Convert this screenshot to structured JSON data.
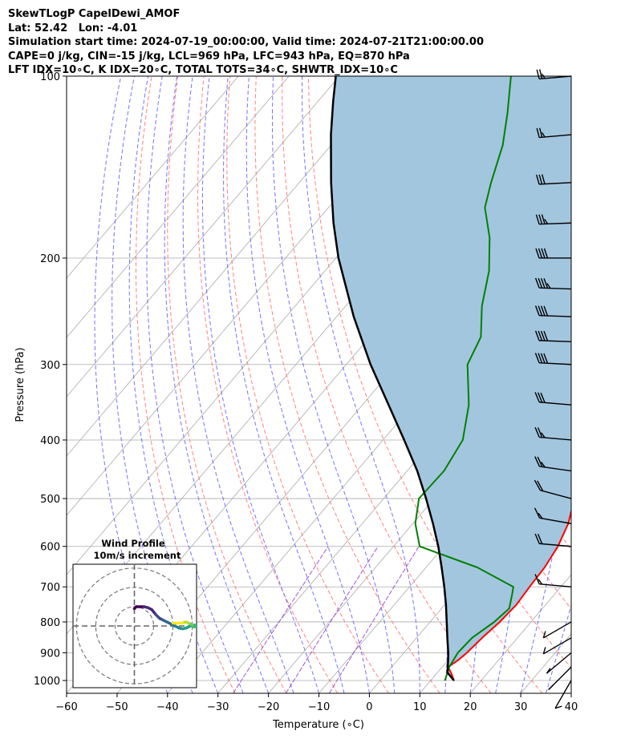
{
  "header": {
    "title": "SkewTLogP CapelDewi_AMOF",
    "location": "Lat: 52.42   Lon: -4.01",
    "times": "Simulation start time: 2024-07-19_00:00:00, Valid time: 2024-07-21T21:00:00.00",
    "indices_1": "CAPE=0 j/kg, CIN=-15 j/kg, LCL=969 hPa, LFC=943 hPa, EQ=870 hPa",
    "indices_2": "LFT IDX=10∘C, K IDX=20∘C, TOTAL TOTS=34∘C, SHWTR_IDX=10∘C"
  },
  "chart_data": {
    "type": "line",
    "xlabel": "Temperature (∘C)",
    "ylabel": "Pressure (hPa)",
    "xlim": [
      -60,
      40
    ],
    "ylim": [
      1050,
      100
    ],
    "y_scale": "log",
    "skew": true,
    "x_ticks": [
      "−60",
      "−50",
      "−40",
      "−30",
      "−20",
      "−10",
      "0",
      "10",
      "20",
      "30",
      "40"
    ],
    "y_ticks": [
      "100",
      "200",
      "300",
      "400",
      "500",
      "600",
      "700",
      "800",
      "900",
      "1000"
    ],
    "y_tick_values": [
      100,
      200,
      300,
      400,
      500,
      600,
      700,
      800,
      900,
      1000
    ],
    "grid": true,
    "colors": {
      "temperature": "#ff0000",
      "dewpoint": "#008000",
      "parcel": "#000000",
      "cape_fill": "#a3c6df",
      "dry_adiabat": "#ff6b6b",
      "moist_adiabat": "#5a5aff",
      "mixing_ratio": "#9944cc",
      "isotherm": "#aaaaaa",
      "isobar": "#aaaaaa"
    },
    "series": [
      {
        "key": "temperature",
        "points": [
          [
            1000,
            14.6
          ],
          [
            975,
            13.0
          ],
          [
            950,
            11.2
          ],
          [
            925,
            12.0
          ],
          [
            900,
            12.5
          ],
          [
            850,
            13.0
          ],
          [
            800,
            13.8
          ],
          [
            750,
            14.2
          ],
          [
            700,
            13.8
          ],
          [
            650,
            13.5
          ],
          [
            600,
            12.6
          ],
          [
            550,
            10.8
          ],
          [
            500,
            7.8
          ],
          [
            450,
            3.9
          ],
          [
            400,
            -0.5
          ],
          [
            350,
            -5.6
          ],
          [
            300,
            -11.2
          ],
          [
            270,
            -13.2
          ],
          [
            250,
            -12.8
          ],
          [
            225,
            -11.0
          ],
          [
            200,
            -9.5
          ],
          [
            175,
            -8.6
          ],
          [
            150,
            -7.5
          ],
          [
            125,
            -6.4
          ],
          [
            110,
            -5.6
          ],
          [
            100,
            -5.0
          ]
        ]
      },
      {
        "key": "dewpoint",
        "points": [
          [
            1000,
            12.8
          ],
          [
            950,
            11.4
          ],
          [
            900,
            10.7
          ],
          [
            850,
            11.0
          ],
          [
            800,
            12.7
          ],
          [
            760,
            13.4
          ],
          [
            720,
            11.6
          ],
          [
            700,
            10.6
          ],
          [
            650,
            0.2
          ],
          [
            600,
            -14.8
          ],
          [
            550,
            -19.5
          ],
          [
            500,
            -23.0
          ],
          [
            450,
            -22.7
          ],
          [
            400,
            -24.2
          ],
          [
            350,
            -28.9
          ],
          [
            300,
            -36.0
          ],
          [
            270,
            -38.0
          ],
          [
            240,
            -43.0
          ],
          [
            210,
            -47.5
          ],
          [
            185,
            -53.0
          ],
          [
            165,
            -59.0
          ],
          [
            150,
            -62.0
          ],
          [
            130,
            -66.0
          ],
          [
            115,
            -70.5
          ],
          [
            100,
            -76.0
          ]
        ]
      },
      {
        "key": "parcel",
        "points": [
          [
            1000,
            14.6
          ],
          [
            975,
            12.4
          ],
          [
            969,
            11.9
          ],
          [
            950,
            11.1
          ],
          [
            925,
            10.0
          ],
          [
            900,
            8.8
          ],
          [
            850,
            6.1
          ],
          [
            800,
            3.3
          ],
          [
            750,
            0.3
          ],
          [
            700,
            -3.1
          ],
          [
            650,
            -6.9
          ],
          [
            600,
            -11.1
          ],
          [
            550,
            -16.0
          ],
          [
            500,
            -21.6
          ],
          [
            450,
            -28.0
          ],
          [
            400,
            -35.8
          ],
          [
            350,
            -44.8
          ],
          [
            300,
            -55.2
          ],
          [
            250,
            -66.6
          ],
          [
            200,
            -79.5
          ],
          [
            175,
            -86.4
          ],
          [
            150,
            -93.7
          ],
          [
            125,
            -101.8
          ],
          [
            110,
            -107.0
          ],
          [
            100,
            -110.7
          ]
        ]
      }
    ],
    "wind_barbs": [
      {
        "p": 100,
        "speed": 25,
        "dir": 85
      },
      {
        "p": 125,
        "speed": 25,
        "dir": 85
      },
      {
        "p": 150,
        "speed": 30,
        "dir": 87
      },
      {
        "p": 175,
        "speed": 35,
        "dir": 88
      },
      {
        "p": 200,
        "speed": 40,
        "dir": 90
      },
      {
        "p": 225,
        "speed": 45,
        "dir": 92
      },
      {
        "p": 250,
        "speed": 40,
        "dir": 92
      },
      {
        "p": 275,
        "speed": 40,
        "dir": 92
      },
      {
        "p": 300,
        "speed": 40,
        "dir": 93
      },
      {
        "p": 350,
        "speed": 30,
        "dir": 95
      },
      {
        "p": 400,
        "speed": 25,
        "dir": 95
      },
      {
        "p": 450,
        "speed": 25,
        "dir": 98
      },
      {
        "p": 500,
        "speed": 20,
        "dir": 105
      },
      {
        "p": 550,
        "speed": 15,
        "dir": 100
      },
      {
        "p": 600,
        "speed": 20,
        "dir": 95
      },
      {
        "p": 700,
        "speed": 15,
        "dir": 95
      },
      {
        "p": 800,
        "speed": 10,
        "dir": 60
      },
      {
        "p": 850,
        "speed": 10,
        "dir": 60
      },
      {
        "p": 900,
        "speed": 10,
        "dir": 50
      },
      {
        "p": 950,
        "speed": 10,
        "dir": 45
      },
      {
        "p": 1000,
        "speed": 10,
        "dir": 30
      }
    ],
    "inset": {
      "title": "Wind Profile",
      "subtitle": "10m/s increment",
      "rings_ms": [
        10,
        20,
        30
      ],
      "max_ms": 32,
      "path": [
        [
          0,
          9
        ],
        [
          1,
          10
        ],
        [
          3,
          10
        ],
        [
          5,
          10
        ],
        [
          7,
          9.5
        ],
        [
          9,
          8.5
        ],
        [
          11,
          6
        ],
        [
          13,
          4
        ],
        [
          15,
          3
        ],
        [
          17,
          2
        ],
        [
          19,
          1
        ],
        [
          21,
          0
        ],
        [
          23,
          -1
        ],
        [
          25,
          -1.5
        ],
        [
          27,
          -1
        ],
        [
          29,
          0
        ],
        [
          31,
          0.5
        ],
        [
          32,
          0
        ],
        [
          31,
          -0.5
        ],
        [
          30,
          0.5
        ],
        [
          29,
          1
        ],
        [
          28,
          1.5
        ],
        [
          27,
          2
        ],
        [
          26,
          2
        ],
        [
          25,
          1.5
        ],
        [
          22,
          1.5
        ],
        [
          20,
          1.5
        ]
      ],
      "path_colors": [
        "#440154",
        "#482878",
        "#3e4989",
        "#31688e",
        "#26828e",
        "#1f9e89",
        "#35b779",
        "#6ece58",
        "#b5de2b",
        "#fde725"
      ]
    }
  }
}
